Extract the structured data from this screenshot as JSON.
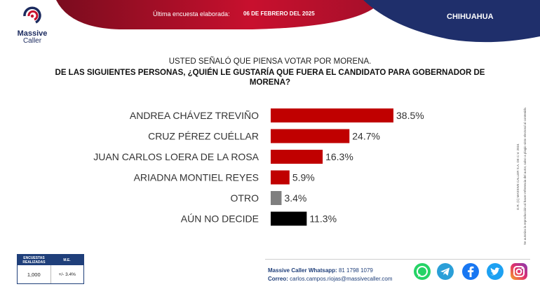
{
  "header": {
    "brand_line1": "Massive",
    "brand_line2": "Caller",
    "last_survey_label": "Última encuesta elaborada:",
    "last_survey_date": "06 DE FEBRERO DEL 2025",
    "state": "CHIHUAHUA"
  },
  "question": {
    "line1": "USTED SEÑALÓ QUE PIENSA VOTAR POR MORENA.",
    "line2": "DE LAS SIGUIENTES PERSONAS, ¿QUIÉN LE GUSTARÍA QUE FUERA EL CANDIDATO PARA GOBERNADOR DE MORENA?"
  },
  "chart_data": {
    "type": "bar",
    "orientation": "horizontal",
    "categories": [
      "ANDREA CHÁVEZ TREVIÑO",
      "CRUZ PÉREZ CUÉLLAR",
      "JUAN CARLOS LOERA DE LA ROSA",
      "ARIADNA MONTIEL REYES",
      "OTRO",
      "AÚN NO DECIDE"
    ],
    "values": [
      38.5,
      24.7,
      16.3,
      5.9,
      3.4,
      11.3
    ],
    "labels": [
      "38.5%",
      "24.7%",
      "16.3%",
      "5.9%",
      "3.4%",
      "11.3%"
    ],
    "colors": [
      "#c00000",
      "#c00000",
      "#c00000",
      "#c00000",
      "#7f7f7f",
      "#000000"
    ],
    "xlim": [
      0,
      38.5
    ]
  },
  "side_notes": {
    "copyright": "D.R. (C) MASSIVE CALLER S.A. DE C.V. 2024",
    "permission": "Se autoriza la reproducción al hacer referencia del autor, salvo a plagio visto electoral al contenido."
  },
  "sample": {
    "surveys_header": "ENCUESTAS REALIZADAS",
    "moe_header": "M.E.",
    "surveys_value": "1,000",
    "moe_value": "+/- 3.4%"
  },
  "contact": {
    "whatsapp_label": "Massive Caller Whatsapp:",
    "whatsapp_value": "81 1798 1079",
    "email_label": "Correo:",
    "email_value": "carlos.campos.riojas@massivecaller.com"
  },
  "social": [
    {
      "name": "whatsapp-icon",
      "color": "#25d366"
    },
    {
      "name": "telegram-icon",
      "color": "#2a9fd8"
    },
    {
      "name": "facebook-icon",
      "color": "#1877f2"
    },
    {
      "name": "twitter-icon",
      "color": "#1da1f2"
    },
    {
      "name": "instagram-icon",
      "color": "#c13584"
    }
  ]
}
